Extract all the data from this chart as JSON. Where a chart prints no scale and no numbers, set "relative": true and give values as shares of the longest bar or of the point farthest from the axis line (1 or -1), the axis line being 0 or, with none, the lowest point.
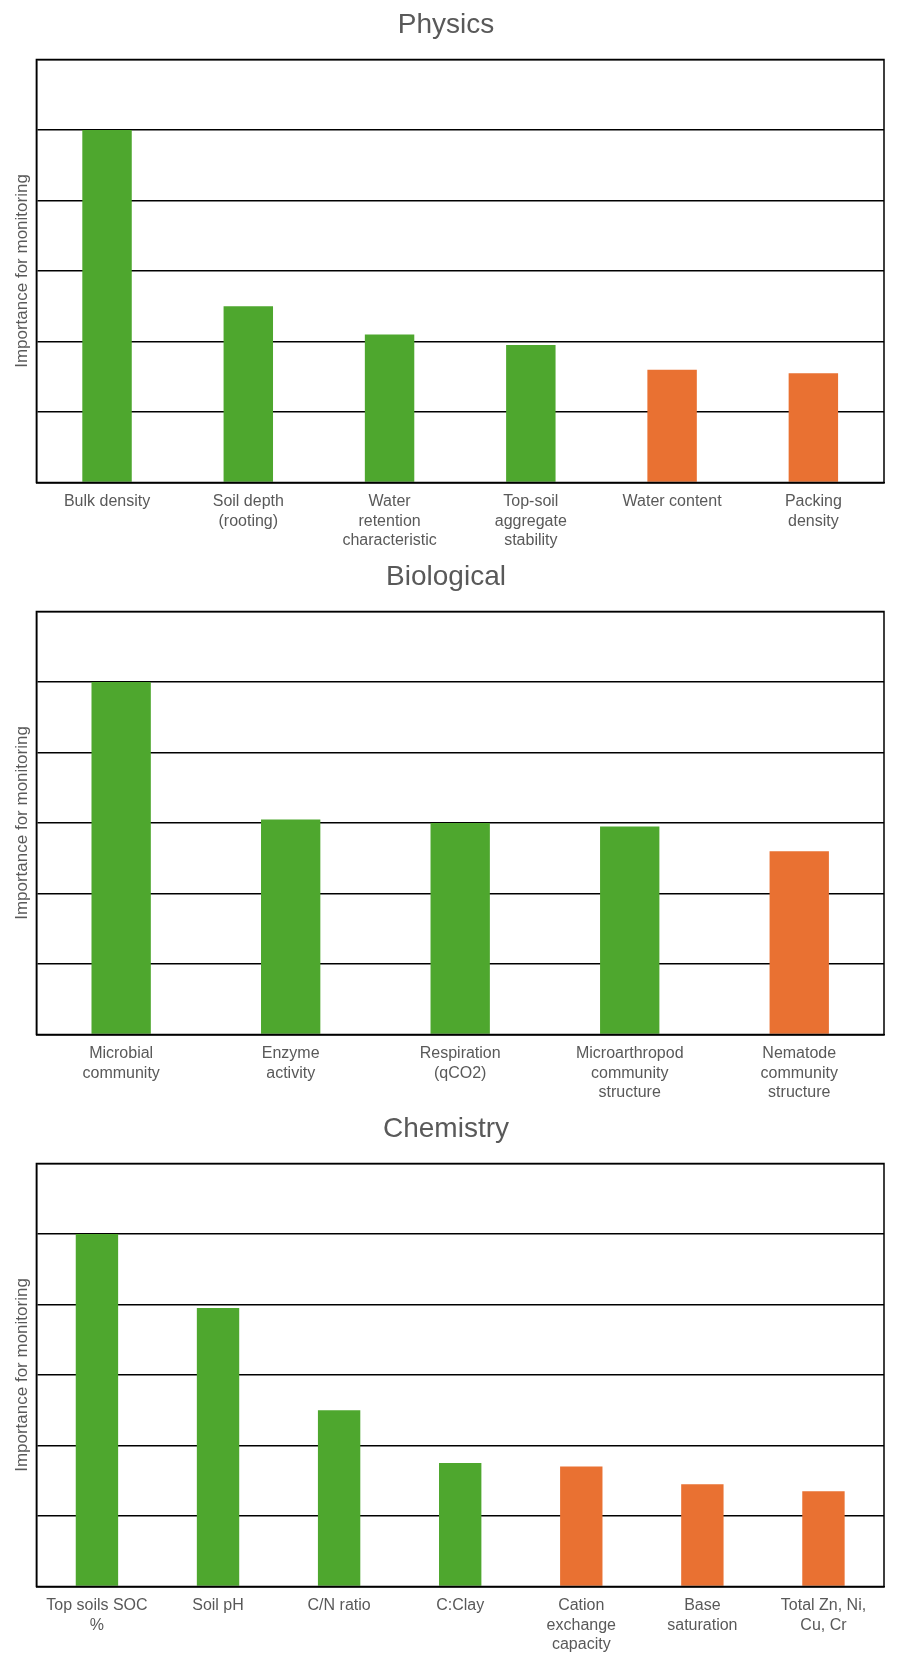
{
  "chart_data": [
    {
      "type": "bar",
      "title": "Physics",
      "ylabel": "Importance for monitoring",
      "relative": true,
      "grid": "y",
      "categories": [
        "Bulk density",
        "Soil depth (rooting)",
        "Water retention characteristic",
        "Top-soil aggregate stability",
        "Water content",
        "Packing density"
      ],
      "values": [
        1,
        0.5,
        0.42,
        0.39,
        0.32,
        0.31
      ],
      "colors": [
        "#4ea72e",
        "#4ea72e",
        "#4ea72e",
        "#4ea72e",
        "#e97132",
        "#e97132"
      ]
    },
    {
      "type": "bar",
      "title": "Biological",
      "ylabel": "Importance for monitoring",
      "relative": true,
      "grid": "y",
      "categories": [
        "Microbial community",
        "Enzyme activity",
        "Respiration (qCO2)",
        "Microarthropod community structure",
        "Nematode community structure"
      ],
      "values": [
        1,
        0.61,
        0.6,
        0.59,
        0.52
      ],
      "colors": [
        "#4ea72e",
        "#4ea72e",
        "#4ea72e",
        "#4ea72e",
        "#e97132"
      ]
    },
    {
      "type": "bar",
      "title": "Chemistry",
      "ylabel": "Importance for monitoring",
      "relative": true,
      "grid": "y",
      "categories": [
        "Top soils SOC %",
        "Soil pH",
        "C/N ratio",
        "C:Clay",
        "Cation exchange capacity",
        "Base saturation",
        "Total Zn, Ni, Cu, Cr"
      ],
      "values": [
        1,
        0.79,
        0.5,
        0.35,
        0.34,
        0.29,
        0.27
      ],
      "colors": [
        "#4ea72e",
        "#4ea72e",
        "#4ea72e",
        "#4ea72e",
        "#e97132",
        "#e97132",
        "#e97132"
      ]
    }
  ]
}
